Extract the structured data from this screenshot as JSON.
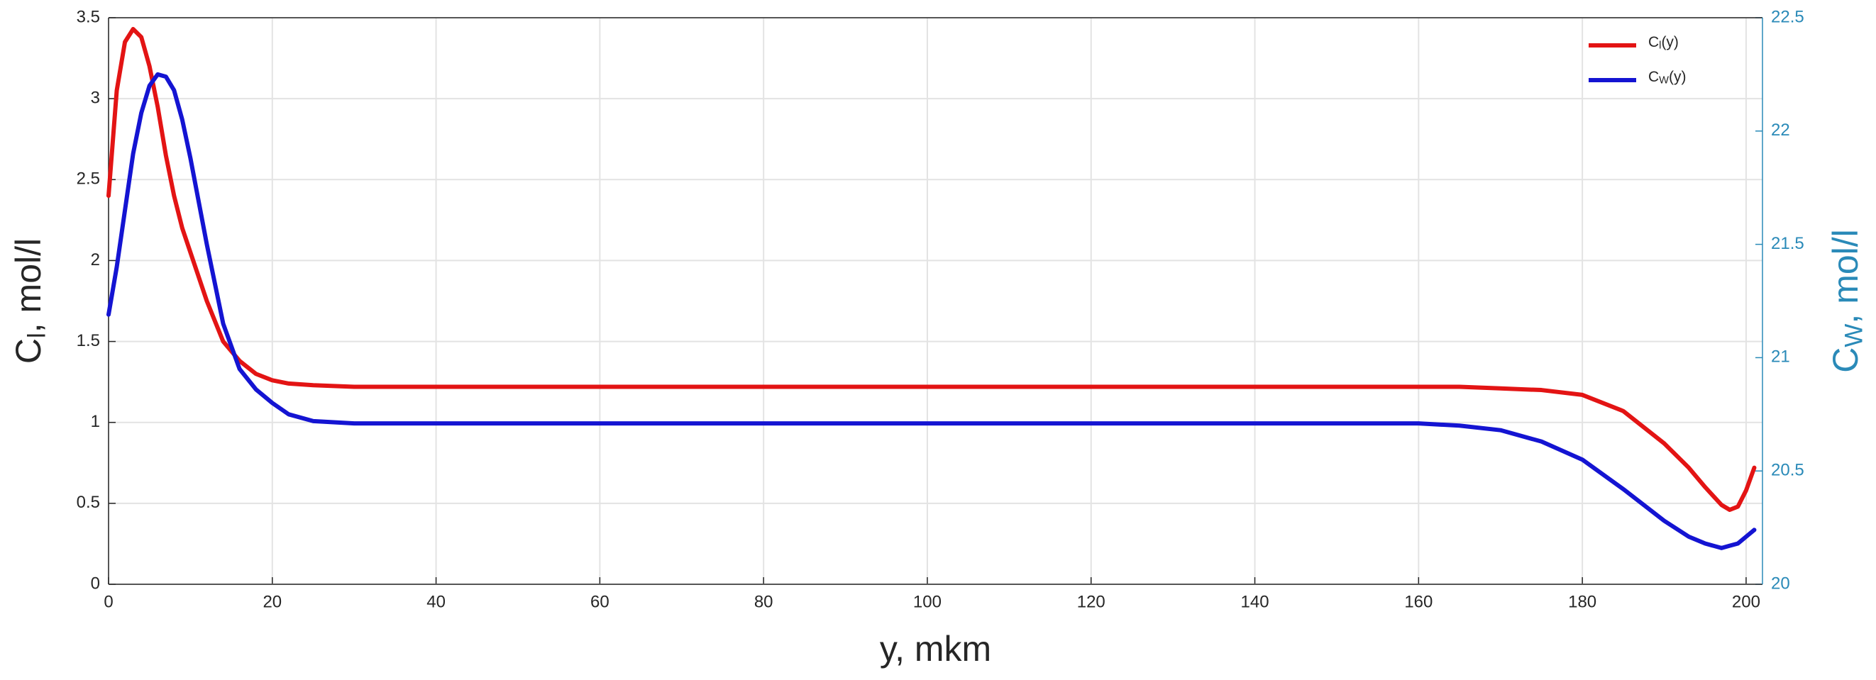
{
  "chart_data": {
    "type": "line",
    "x_label": "y, mkm",
    "y_label": {
      "main": "C",
      "sub": "l",
      "rest": ", mol/l"
    },
    "y2_label": {
      "main": "C",
      "sub": "W",
      "rest": ", mol/l"
    },
    "y2_color": "#2a8ab8",
    "xlim": [
      0,
      202
    ],
    "xticks": [
      0,
      20,
      40,
      60,
      80,
      100,
      120,
      140,
      160,
      180,
      200
    ],
    "ylim": [
      0,
      3.5
    ],
    "yticks": [
      0,
      0.5,
      1,
      1.5,
      2,
      2.5,
      3,
      3.5
    ],
    "y2lim": [
      20,
      22.5
    ],
    "y2ticks": [
      20,
      20.5,
      21,
      21.5,
      22,
      22.5
    ],
    "grid": true,
    "legend": "top-right",
    "x": [
      0,
      1,
      2,
      3,
      4,
      5,
      6,
      7,
      8,
      9,
      10,
      12,
      14,
      16,
      18,
      20,
      22,
      25,
      30,
      40,
      160,
      165,
      170,
      175,
      180,
      185,
      190,
      193,
      195,
      197,
      198,
      199,
      200,
      201
    ],
    "series": [
      {
        "name": {
          "main": "C",
          "sub": "l",
          "rest": "(y)"
        },
        "color": "#e31414",
        "values": [
          2.4,
          3.05,
          3.35,
          3.43,
          3.38,
          3.2,
          2.95,
          2.65,
          2.4,
          2.2,
          2.05,
          1.75,
          1.5,
          1.38,
          1.3,
          1.26,
          1.24,
          1.23,
          1.22,
          1.22,
          1.22,
          1.22,
          1.21,
          1.2,
          1.17,
          1.07,
          0.87,
          0.72,
          0.6,
          0.49,
          0.46,
          0.48,
          0.58,
          0.72
        ]
      },
      {
        "name": {
          "main": "C",
          "sub": "W",
          "rest": "(y)"
        },
        "color": "#1414d2",
        "axis": "y2",
        "values": [
          21.19,
          21.4,
          21.65,
          21.9,
          22.08,
          22.2,
          22.25,
          22.24,
          22.18,
          22.05,
          21.88,
          21.5,
          21.15,
          20.95,
          20.86,
          20.8,
          20.75,
          20.72,
          20.71,
          20.71,
          20.71,
          20.7,
          20.68,
          20.63,
          20.55,
          20.42,
          20.28,
          20.21,
          20.18,
          20.16,
          20.17,
          20.18,
          20.21,
          20.24
        ]
      }
    ]
  }
}
